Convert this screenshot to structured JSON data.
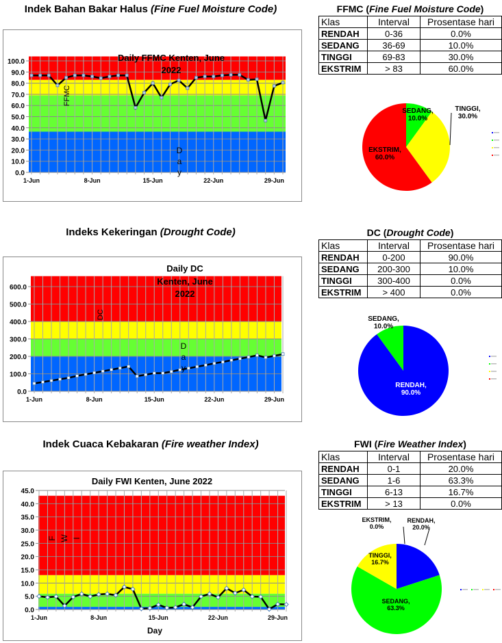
{
  "sections": [
    {
      "heading": "Indek Bahan Bakar Halus ",
      "heading_italic": "(Fine Fuel Moisture Code)",
      "table_title": "FFMC (",
      "table_title_italic": "Fine Fuel Moisture Code",
      "table_title_end": ")",
      "table": {
        "headers": [
          "Klas",
          "Interval",
          "Prosentase hari"
        ],
        "rows": [
          [
            "RENDAH",
            "0-36",
            "0.0%"
          ],
          [
            "SEDANG",
            "36-69",
            "10.0%"
          ],
          [
            "TINGGI",
            "69-83",
            "30.0%"
          ],
          [
            "EKSTRIM",
            "> 83",
            "60.0%"
          ]
        ]
      }
    },
    {
      "heading": "Indeks Kekeringan ",
      "heading_italic": "(Drought Code)",
      "table_title": "DC (",
      "table_title_italic": "Drought Code",
      "table_title_end": ")",
      "table": {
        "headers": [
          "Klas",
          "Interval",
          "Prosentase hari"
        ],
        "rows": [
          [
            "RENDAH",
            "0-200",
            "90.0%"
          ],
          [
            "SEDANG",
            "200-300",
            "10.0%"
          ],
          [
            "TINGGI",
            "300-400",
            "0.0%"
          ],
          [
            "EKSTRIM",
            "> 400",
            "0.0%"
          ]
        ]
      }
    },
    {
      "heading": "Indek Cuaca Kebakaran ",
      "heading_italic": "(Fire weather Index)",
      "table_title": "FWI (",
      "table_title_italic": "Fire Weather Index",
      "table_title_end": ")",
      "table": {
        "headers": [
          "Klas",
          "Interval",
          "Prosentase hari"
        ],
        "rows": [
          [
            "RENDAH",
            "0-1",
            "20.0%"
          ],
          [
            "SEDANG",
            "1-6",
            "63.3%"
          ],
          [
            "TINGGI",
            "6-13",
            "16.7%"
          ],
          [
            "EKSTRIM",
            "> 13",
            "0.0%"
          ]
        ]
      }
    }
  ],
  "colors": {
    "RENDAH": "#0066ff",
    "SEDANG": "#66ff33",
    "TINGGI": "#ffff00",
    "EKSTRIM": "#ff0000",
    "pie_RENDAH": "#0000ff",
    "pie_SEDANG": "#00ff00"
  },
  "chart_data": [
    {
      "type": "line",
      "title": "Daily FFMC Kenten, June 2022",
      "xlabel": "Day",
      "ylabel": "FFMC",
      "ylim": [
        0,
        100
      ],
      "ytick_step": 10,
      "grid": true,
      "xtick_labels": [
        "1-Jun",
        "8-Jun",
        "15-Jun",
        "22-Jun",
        "29-Jun"
      ],
      "bands": [
        [
          0,
          36.5,
          "RENDAH"
        ],
        [
          36.5,
          69,
          "SEDANG"
        ],
        [
          69,
          83,
          "TINGGI"
        ],
        [
          83,
          104,
          "EKSTRIM"
        ]
      ],
      "x": [
        1,
        2,
        3,
        4,
        5,
        6,
        7,
        8,
        9,
        10,
        11,
        12,
        13,
        14,
        15,
        16,
        17,
        18,
        19,
        20,
        21,
        22,
        23,
        24,
        25,
        26,
        27,
        28,
        29,
        30
      ],
      "values": [
        87,
        87,
        87,
        78,
        85,
        87,
        87,
        86,
        84.5,
        86,
        87,
        87,
        58,
        71.5,
        80,
        67,
        79,
        82.5,
        75.5,
        85,
        86,
        86,
        87,
        87.5,
        87.5,
        83,
        83.5,
        46.5,
        77.5,
        80.5
      ]
    },
    {
      "type": "line",
      "title": "Daily DC Kenten, June 2022",
      "xlabel": "Day",
      "ylabel": "DC",
      "ylim": [
        0,
        600
      ],
      "ytick_step": 100,
      "grid": true,
      "xtick_labels": [
        "1-Jun",
        "8-Jun",
        "15-Jun",
        "22-Jun",
        "29-Jun"
      ],
      "bands": [
        [
          0,
          200,
          "RENDAH"
        ],
        [
          200,
          300,
          "SEDANG"
        ],
        [
          300,
          400,
          "TINGGI"
        ],
        [
          400,
          660,
          "EKSTRIM"
        ]
      ],
      "x": [
        1,
        2,
        3,
        4,
        5,
        6,
        7,
        8,
        9,
        10,
        11,
        12,
        13,
        14,
        15,
        16,
        17,
        18,
        19,
        20,
        21,
        22,
        23,
        24,
        25,
        26,
        27,
        28,
        29,
        30
      ],
      "values": [
        45,
        53,
        61,
        69,
        77,
        88,
        97,
        106,
        115,
        124,
        133,
        142,
        86,
        95,
        104,
        104,
        113,
        123,
        132,
        141,
        150,
        160,
        168,
        178,
        187,
        196,
        206,
        194,
        203,
        213
      ]
    },
    {
      "type": "line",
      "title": "Daily FWI Kenten, June 2022",
      "xlabel": "Day",
      "ylabel": "FWI",
      "ylim": [
        0,
        45
      ],
      "ytick_step": 5,
      "grid": true,
      "xtick_labels": [
        "1-Jun",
        "8-Jun",
        "15-Jun",
        "22-Jun",
        "29-Jun"
      ],
      "bands": [
        [
          0,
          1,
          "RENDAH"
        ],
        [
          1,
          6,
          "SEDANG"
        ],
        [
          6,
          13,
          "TINGGI"
        ],
        [
          13,
          43,
          "EKSTRIM"
        ]
      ],
      "x": [
        1,
        2,
        3,
        4,
        5,
        6,
        7,
        8,
        9,
        10,
        11,
        12,
        13,
        14,
        15,
        16,
        17,
        18,
        19,
        20,
        21,
        22,
        23,
        24,
        25,
        26,
        27,
        28,
        29,
        30
      ],
      "values": [
        5.0,
        4.6,
        4.9,
        1.4,
        4.7,
        5.9,
        4.9,
        5.7,
        5.9,
        5.4,
        8.5,
        7.7,
        0.3,
        0.5,
        1.8,
        0.6,
        0.8,
        2.0,
        0.8,
        4.9,
        5.9,
        4.6,
        8.0,
        6.2,
        7.4,
        4.9,
        4.8,
        0.1,
        2.0,
        1.9
      ]
    },
    {
      "type": "pie",
      "slices": [
        {
          "label": "RENDAH",
          "value": 0.0
        },
        {
          "label": "SEDANG",
          "value": 10.0
        },
        {
          "label": "TINGGI",
          "value": 30.0
        },
        {
          "label": "EKSTRIM",
          "value": 60.0
        }
      ],
      "legend": "right"
    },
    {
      "type": "pie",
      "slices": [
        {
          "label": "RENDAH",
          "value": 90.0
        },
        {
          "label": "SEDANG",
          "value": 10.0
        },
        {
          "label": "TINGGI",
          "value": 0.0
        },
        {
          "label": "EKSTRIM",
          "value": 0.0
        }
      ],
      "legend": "right"
    },
    {
      "type": "pie",
      "slices": [
        {
          "label": "RENDAH",
          "value": 20.0
        },
        {
          "label": "SEDANG",
          "value": 63.3
        },
        {
          "label": "TINGGI",
          "value": 16.7
        },
        {
          "label": "EKSTRIM",
          "value": 0.0
        }
      ],
      "legend": "bottom-right"
    }
  ]
}
